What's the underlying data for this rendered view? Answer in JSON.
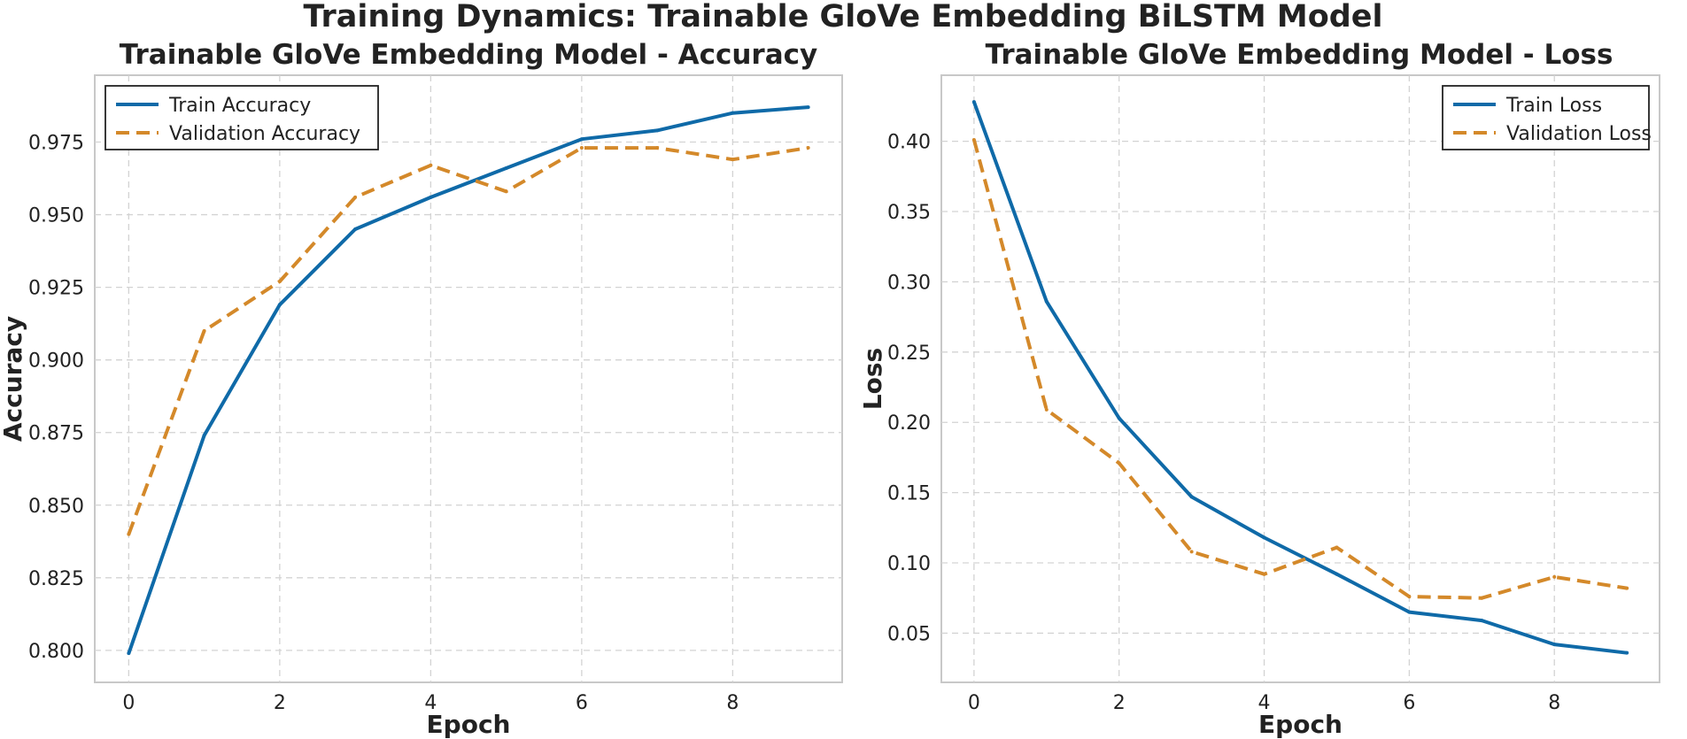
{
  "suptitle": "Training Dynamics: Trainable GloVe Embedding BiLSTM Model",
  "colors": {
    "train": "#0f6aa8",
    "validation": "#d4892a",
    "grid": "#d3d3d3",
    "frame": "#c8c8c8"
  },
  "chart_data": [
    {
      "type": "line",
      "title": "Trainable GloVe Embedding Model - Accuracy",
      "xlabel": "Epoch",
      "ylabel": "Accuracy",
      "x": [
        0,
        1,
        2,
        3,
        4,
        5,
        6,
        7,
        8,
        9
      ],
      "xlim": [
        -0.45,
        9.45
      ],
      "ylim": [
        0.789,
        0.998
      ],
      "xticks": [
        0,
        2,
        4,
        6,
        8
      ],
      "yticks": [
        0.8,
        0.825,
        0.85,
        0.875,
        0.9,
        0.925,
        0.95,
        0.975
      ],
      "ytick_labels": [
        "0.800",
        "0.825",
        "0.850",
        "0.875",
        "0.900",
        "0.925",
        "0.950",
        "0.975"
      ],
      "legend_loc": "upper left",
      "grid": true,
      "series": [
        {
          "name": "Train Accuracy",
          "style": "solid",
          "color_key": "train",
          "values": [
            0.799,
            0.874,
            0.919,
            0.945,
            0.956,
            0.966,
            0.976,
            0.979,
            0.985,
            0.987
          ]
        },
        {
          "name": "Validation Accuracy",
          "style": "dashed",
          "color_key": "validation",
          "values": [
            0.84,
            0.91,
            0.927,
            0.956,
            0.967,
            0.958,
            0.973,
            0.973,
            0.969,
            0.973
          ]
        }
      ]
    },
    {
      "type": "line",
      "title": "Trainable GloVe Embedding Model - Loss",
      "xlabel": "Epoch",
      "ylabel": "Loss",
      "x": [
        0,
        1,
        2,
        3,
        4,
        5,
        6,
        7,
        8,
        9
      ],
      "xlim": [
        -0.45,
        9.45
      ],
      "ylim": [
        0.015,
        0.447
      ],
      "xticks": [
        0,
        2,
        4,
        6,
        8
      ],
      "yticks": [
        0.05,
        0.1,
        0.15,
        0.2,
        0.25,
        0.3,
        0.35,
        0.4
      ],
      "ytick_labels": [
        "0.05",
        "0.10",
        "0.15",
        "0.20",
        "0.25",
        "0.30",
        "0.35",
        "0.40"
      ],
      "legend_loc": "upper right",
      "grid": true,
      "series": [
        {
          "name": "Train Loss",
          "style": "solid",
          "color_key": "train",
          "values": [
            0.428,
            0.286,
            0.203,
            0.147,
            0.118,
            0.092,
            0.065,
            0.059,
            0.042,
            0.036
          ]
        },
        {
          "name": "Validation Loss",
          "style": "dashed",
          "color_key": "validation",
          "values": [
            0.401,
            0.209,
            0.171,
            0.108,
            0.092,
            0.111,
            0.076,
            0.075,
            0.09,
            0.082
          ]
        }
      ]
    }
  ]
}
